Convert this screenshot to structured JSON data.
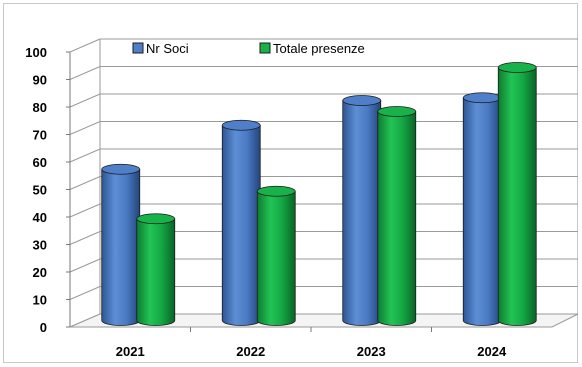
{
  "chart_data": {
    "type": "bar",
    "title": "",
    "xlabel": "",
    "ylabel": "",
    "categories": [
      "2021",
      "2022",
      "2023",
      "2024"
    ],
    "series": [
      {
        "name": "Nr Soci",
        "values": [
          55,
          71,
          80,
          81
        ],
        "color": "#4f7fc9"
      },
      {
        "name": "Totale presenze",
        "values": [
          37,
          47,
          76,
          92
        ],
        "color": "#18b24a"
      }
    ],
    "ylim": [
      0,
      100
    ],
    "yticks": [
      0,
      10,
      20,
      30,
      40,
      50,
      60,
      70,
      80,
      90,
      100
    ],
    "grid": true,
    "legend_position": "top-left",
    "style": "3d-cylinder"
  }
}
